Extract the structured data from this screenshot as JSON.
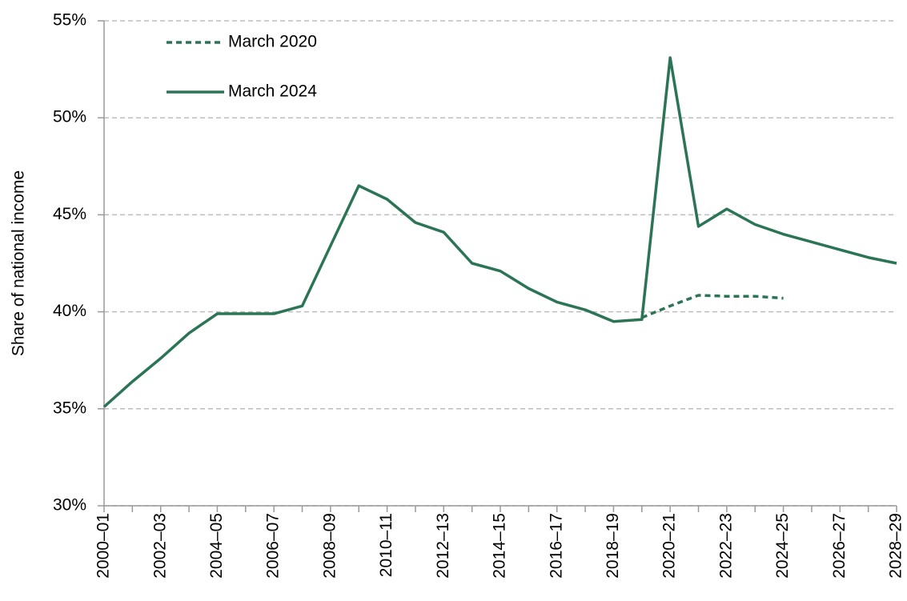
{
  "chart_data": {
    "type": "line",
    "y_axis_label": "Share of national income",
    "categories": [
      "2000–01",
      null,
      "2002–03",
      null,
      "2004–05",
      null,
      "2006–07",
      null,
      "2008–09",
      null,
      "2010–11",
      null,
      "2012–13",
      null,
      "2014–15",
      null,
      "2016–17",
      null,
      "2018–19",
      null,
      "2020–21",
      null,
      "2022–23",
      null,
      "2024–25",
      null,
      "2026–27",
      null,
      "2028–29"
    ],
    "series": [
      {
        "name": "March 2020",
        "color": "#2b7556",
        "dashed": true,
        "values": [
          null,
          null,
          null,
          null,
          null,
          null,
          null,
          null,
          null,
          null,
          null,
          null,
          null,
          null,
          null,
          null,
          null,
          null,
          null,
          39.7,
          40.3,
          40.85,
          40.8,
          40.8,
          40.7,
          null,
          null,
          null,
          null
        ]
      },
      {
        "name": "March 2024",
        "color": "#2b7556",
        "dashed": false,
        "values": [
          35.1,
          36.4,
          37.6,
          38.9,
          39.9,
          39.9,
          39.9,
          40.3,
          43.4,
          46.5,
          45.8,
          44.6,
          44.1,
          42.5,
          42.1,
          41.2,
          40.5,
          40.1,
          39.5,
          39.6,
          53.1,
          44.4,
          45.3,
          44.5,
          44.0,
          43.6,
          43.2,
          42.8,
          42.5
        ]
      }
    ],
    "ylim": [
      30,
      55
    ],
    "yticks": [
      {
        "value": 30,
        "label": "30%"
      },
      {
        "value": 35,
        "label": "35%"
      },
      {
        "value": 40,
        "label": "40%"
      },
      {
        "value": 45,
        "label": "45%"
      },
      {
        "value": 50,
        "label": "50%"
      },
      {
        "value": 55,
        "label": "55%"
      }
    ],
    "grid": true
  }
}
